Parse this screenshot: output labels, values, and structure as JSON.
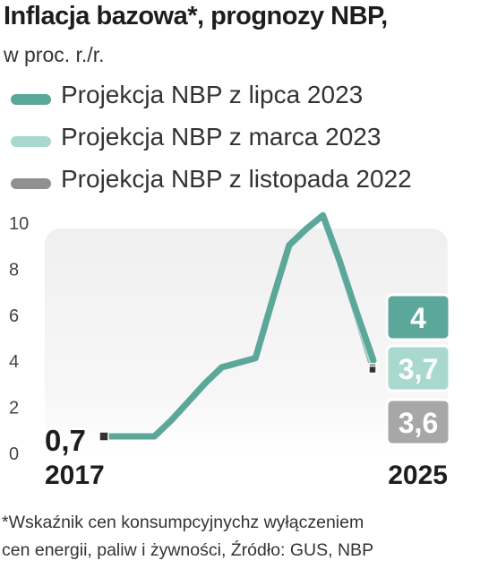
{
  "header": {
    "title": "Inflacja bazowa*, prognozy NBP,",
    "subtitle": "w proc. r./r."
  },
  "legend": [
    {
      "label": "Projekcja NBP z lipca 2023",
      "color": "#5ba79a"
    },
    {
      "label": "Projekcja NBP z marca 2023",
      "color": "#a9d8cf"
    },
    {
      "label": "Projekcja NBP z listopada 2022",
      "color": "#909090"
    }
  ],
  "chart_data": {
    "type": "line",
    "title": "Inflacja bazowa*, prognozy NBP,",
    "subtitle": "w proc. r./r.",
    "x_labels": [
      "2017",
      "2025"
    ],
    "y_ticks": [
      "0",
      "2",
      "4",
      "6",
      "8",
      "10"
    ],
    "ylim": [
      0,
      10
    ],
    "x": [
      2017,
      2017.5,
      2018,
      2018.5,
      2019,
      2019.5,
      2020,
      2020.5,
      2021,
      2021.5,
      2022,
      2022.5,
      2023,
      2023.5,
      2024,
      2024.5,
      2025
    ],
    "series": [
      {
        "name": "Projekcja NBP z lipca 2023",
        "color": "#5ba79a",
        "values": [
          0.7,
          0.7,
          0.7,
          0.7,
          1.4,
          2.2,
          3.0,
          3.7,
          3.9,
          4.1,
          6.6,
          9.0,
          9.7,
          10.3,
          8.3,
          6.1,
          4.0
        ]
      },
      {
        "name": "Projekcja NBP z marca 2023",
        "color": "#a9d8cf",
        "values": [
          0.7,
          0.7,
          0.7,
          0.7,
          1.4,
          2.2,
          3.0,
          3.7,
          3.9,
          4.1,
          6.6,
          9.0,
          9.7,
          10.3,
          8.3,
          6.0,
          3.7
        ]
      },
      {
        "name": "Projekcja NBP z listopada 2022",
        "color": "#909090",
        "values": [
          0.7,
          0.7,
          0.7,
          0.7,
          1.4,
          2.2,
          3.0,
          3.7,
          3.9,
          4.1,
          6.6,
          9.0,
          9.7,
          10.3,
          8.3,
          6.0,
          3.6
        ]
      }
    ],
    "start_label": "0,7",
    "end_labels": [
      {
        "text": "4",
        "series": "Projekcja NBP z lipca 2023"
      },
      {
        "text": "3,7",
        "series": "Projekcja NBP z marca 2023"
      },
      {
        "text": "3,6",
        "series": "Projekcja NBP z listopada 2022"
      }
    ]
  },
  "footnote": {
    "line1": "*Wskaźnik cen konsumpcyjnychz wyłączeniem",
    "line2": "cen energii, paliw i żywności, Źródło: GUS, NBP"
  }
}
